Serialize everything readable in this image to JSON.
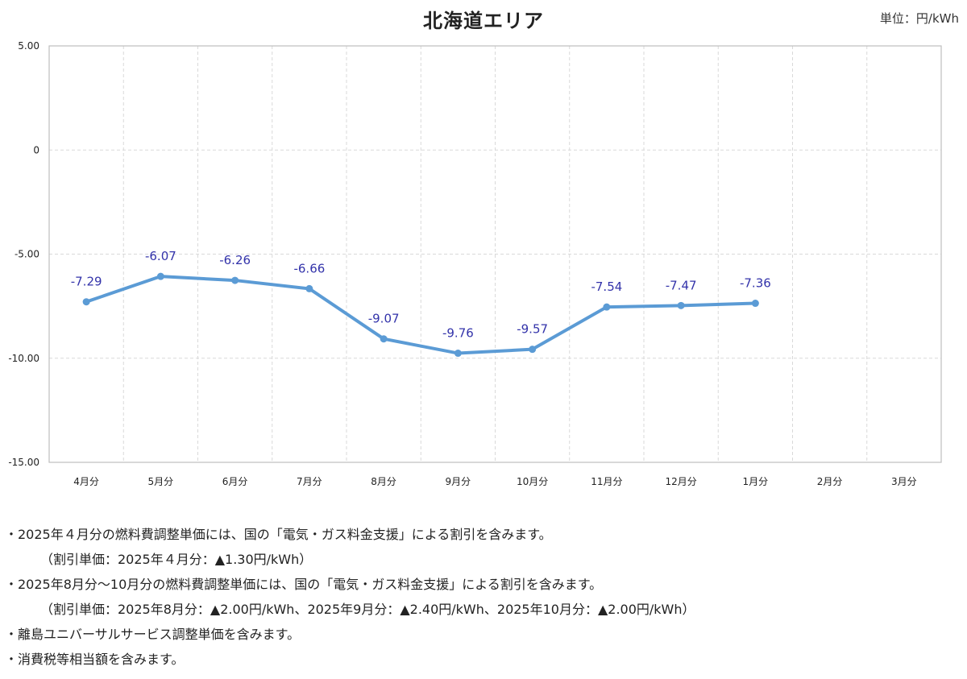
{
  "header": {
    "title": "北海道エリア",
    "unit": "単位：円/kWh"
  },
  "chart_data": {
    "type": "line",
    "title": "北海道エリア",
    "xlabel": "",
    "ylabel": "",
    "categories": [
      "4月分",
      "5月分",
      "6月分",
      "7月分",
      "8月分",
      "9月分",
      "10月分",
      "11月分",
      "12月分",
      "1月分",
      "2月分",
      "3月分"
    ],
    "values": [
      -7.29,
      -6.07,
      -6.26,
      -6.66,
      -9.07,
      -9.76,
      -9.57,
      -7.54,
      -7.47,
      -7.36,
      null,
      null
    ],
    "data_labels": [
      "-7.29",
      "-6.07",
      "-6.26",
      "-6.66",
      "-9.07",
      "-9.76",
      "-9.57",
      "-7.54",
      "-7.47",
      "-7.36",
      "",
      ""
    ],
    "ylim": [
      -15,
      5
    ],
    "yticks": [
      5,
      0,
      -5,
      -10,
      -15
    ],
    "ytick_labels": [
      "5.00",
      "0",
      "-5.00",
      "-10.00",
      "-15.00"
    ],
    "grid": true,
    "line_color": "#5b9bd5",
    "label_color": "#3333aa"
  },
  "notes": [
    "・2025年４月分の燃料費調整単価には、国の「電気・ガス料金支援」による割引を含みます。",
    "（割引単価：2025年４月分：▲1.30円/kWh）",
    "・2025年8月分～10月分の燃料費調整単価には、国の「電気・ガス料金支援」による割引を含みます。",
    "（割引単価：2025年8月分：▲2.00円/kWh、2025年9月分：▲2.40円/kWh、2025年10月分：▲2.00円/kWh）",
    "・離島ユニバーサルサービス調整単価を含みます。",
    "・消費税等相当額を含みます。"
  ]
}
